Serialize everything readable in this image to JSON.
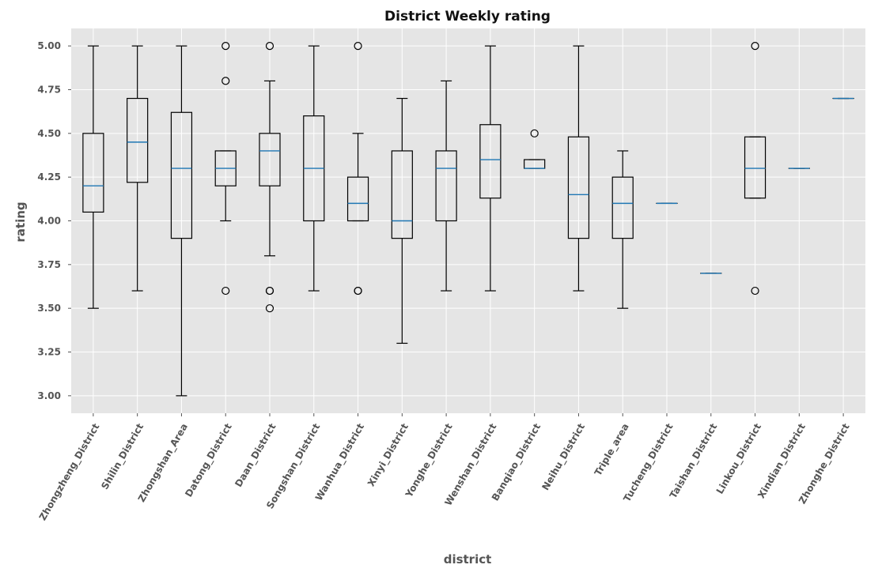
{
  "chart_data": {
    "type": "box",
    "title": "District Weekly rating",
    "xlabel": "district",
    "ylabel": "rating",
    "ylim": [
      2.9,
      5.1
    ],
    "yticks": [
      "3.00",
      "3.25",
      "3.50",
      "3.75",
      "4.00",
      "4.25",
      "4.50",
      "4.75",
      "5.00"
    ],
    "grid": true,
    "colors": {
      "background": "#e5e5e5",
      "grid": "#ffffff",
      "box": "#000000",
      "median": "#1f77b4",
      "tick_text": "#555555"
    },
    "categories": [
      "Zhongzheng_District",
      "Shilin_District",
      "Zhongshan_Area",
      "Datong_District",
      "Daan_District",
      "Songshan_District",
      "Wanhua_District",
      "Xinyi_District",
      "Yonghe_District",
      "Wenshan_District",
      "Banqiao_District",
      "Neihu_District",
      "Triple_area",
      "Tucheng_District",
      "Taishan_District",
      "Linkou_District",
      "Xindian_District",
      "Zhonghe_District"
    ],
    "boxes": [
      {
        "whislo": 3.5,
        "q1": 4.05,
        "med": 4.2,
        "q3": 4.5,
        "whishi": 5.0,
        "fliers": []
      },
      {
        "whislo": 3.6,
        "q1": 4.22,
        "med": 4.45,
        "q3": 4.7,
        "whishi": 5.0,
        "fliers": []
      },
      {
        "whislo": 3.0,
        "q1": 3.9,
        "med": 4.3,
        "q3": 4.62,
        "whishi": 5.0,
        "fliers": []
      },
      {
        "whislo": 4.0,
        "q1": 4.2,
        "med": 4.3,
        "q3": 4.4,
        "whishi": 4.4,
        "fliers": [
          5.0,
          4.8,
          3.6
        ]
      },
      {
        "whislo": 3.8,
        "q1": 4.2,
        "med": 4.4,
        "q3": 4.5,
        "whishi": 4.8,
        "fliers": [
          5.0,
          3.6,
          3.6,
          3.5
        ]
      },
      {
        "whislo": 3.6,
        "q1": 4.0,
        "med": 4.3,
        "q3": 4.6,
        "whishi": 5.0,
        "fliers": []
      },
      {
        "whislo": 4.0,
        "q1": 4.0,
        "med": 4.1,
        "q3": 4.25,
        "whishi": 4.5,
        "fliers": [
          5.0,
          3.6,
          3.6
        ]
      },
      {
        "whislo": 3.3,
        "q1": 3.9,
        "med": 4.0,
        "q3": 4.4,
        "whishi": 4.7,
        "fliers": []
      },
      {
        "whislo": 3.6,
        "q1": 4.0,
        "med": 4.3,
        "q3": 4.4,
        "whishi": 4.8,
        "fliers": []
      },
      {
        "whislo": 3.6,
        "q1": 4.13,
        "med": 4.35,
        "q3": 4.55,
        "whishi": 5.0,
        "fliers": []
      },
      {
        "whislo": 4.3,
        "q1": 4.3,
        "med": 4.3,
        "q3": 4.35,
        "whishi": 4.35,
        "fliers": [
          4.5
        ]
      },
      {
        "whislo": 3.6,
        "q1": 3.9,
        "med": 4.15,
        "q3": 4.48,
        "whishi": 5.0,
        "fliers": []
      },
      {
        "whislo": 3.5,
        "q1": 3.9,
        "med": 4.1,
        "q3": 4.25,
        "whishi": 4.4,
        "fliers": []
      },
      {
        "whislo": 4.1,
        "q1": 4.1,
        "med": 4.1,
        "q3": 4.1,
        "whishi": 4.1,
        "fliers": []
      },
      {
        "whislo": 3.7,
        "q1": 3.7,
        "med": 3.7,
        "q3": 3.7,
        "whishi": 3.7,
        "fliers": []
      },
      {
        "whislo": 4.13,
        "q1": 4.13,
        "med": 4.3,
        "q3": 4.48,
        "whishi": 4.48,
        "fliers": [
          5.0,
          3.6
        ]
      },
      {
        "whislo": 4.3,
        "q1": 4.3,
        "med": 4.3,
        "q3": 4.3,
        "whishi": 4.3,
        "fliers": []
      },
      {
        "whislo": 4.7,
        "q1": 4.7,
        "med": 4.7,
        "q3": 4.7,
        "whishi": 4.7,
        "fliers": []
      }
    ]
  }
}
